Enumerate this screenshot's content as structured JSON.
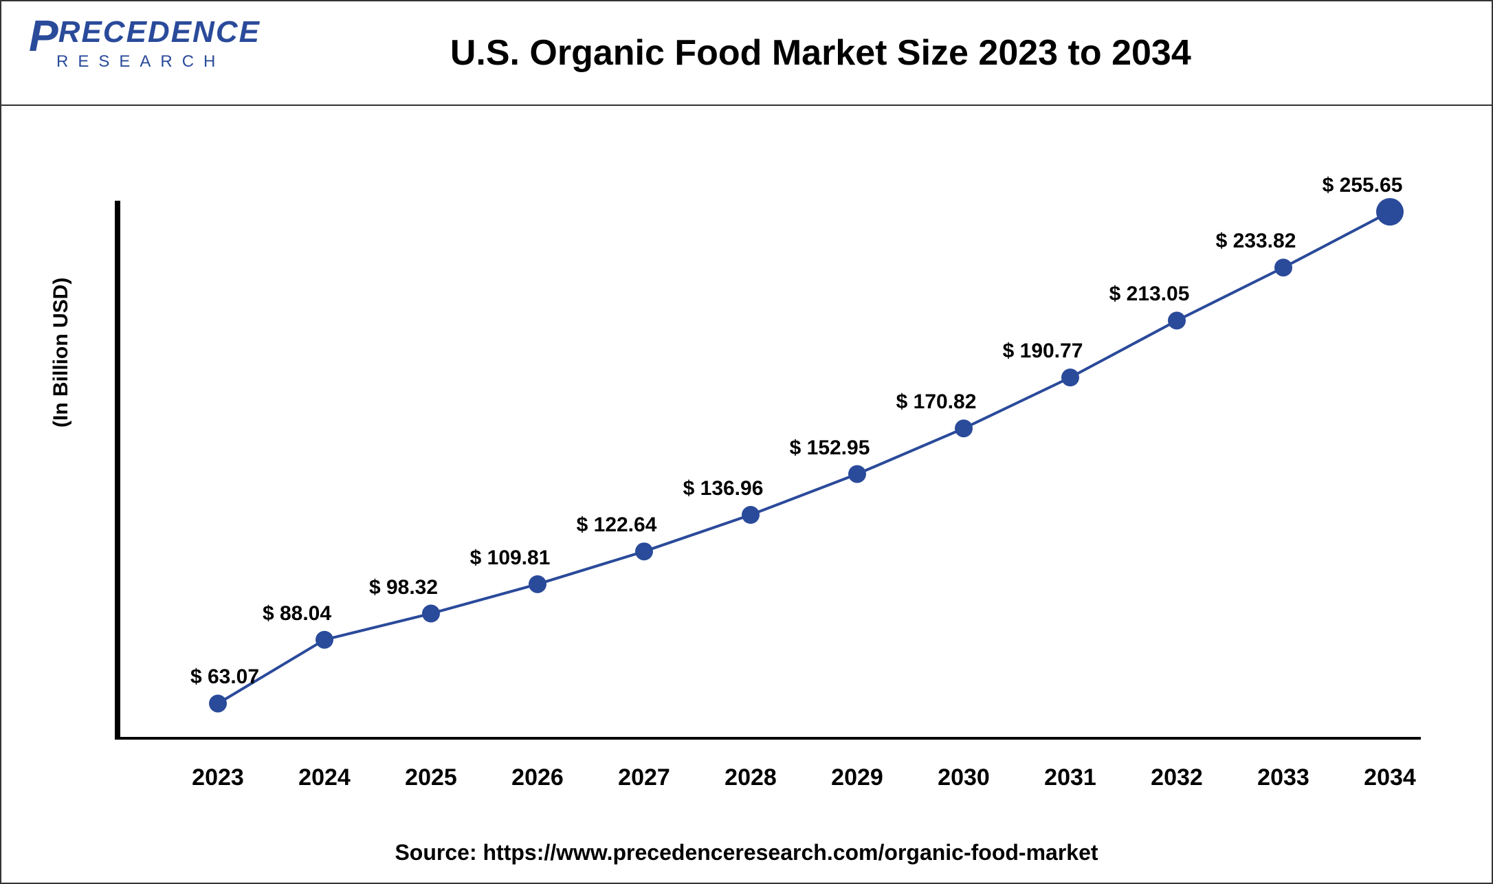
{
  "logo": {
    "brand_p": "P",
    "brand_rest": "RECEDENCE",
    "brand_sub": "RESEARCH",
    "brand_color": "#2a4a9a"
  },
  "title": "U.S. Organic Food Market Size 2023 to 2034",
  "yaxis_label": "(In Billion USD)",
  "source": "Source: https://www.precedenceresearch.com/organic-food-market",
  "chart": {
    "type": "line",
    "line_color": "#2a4a9a",
    "line_width": 4,
    "marker_color": "#2a4a9a",
    "marker_radius": 13,
    "last_marker_radius": 20,
    "background_color": "#ffffff",
    "title_fontsize": 52,
    "label_fontsize": 30,
    "tick_fontsize": 34,
    "ylim": [
      50,
      260
    ],
    "plot_left_pad": 150,
    "plot_x_step": 155,
    "categories": [
      "2023",
      "2024",
      "2025",
      "2026",
      "2027",
      "2028",
      "2029",
      "2030",
      "2031",
      "2032",
      "2033",
      "2034"
    ],
    "values": [
      63.07,
      88.04,
      98.32,
      109.81,
      122.64,
      136.96,
      152.95,
      170.82,
      190.77,
      213.05,
      233.82,
      255.65
    ],
    "data_labels": [
      "$ 63.07",
      "$ 88.04",
      "$ 98.32",
      "$ 109.81",
      "$ 122.64",
      "$ 136.96",
      "$ 152.95",
      "$ 170.82",
      "$ 190.77",
      "$ 213.05",
      "$ 233.82",
      "$ 255.65"
    ]
  }
}
